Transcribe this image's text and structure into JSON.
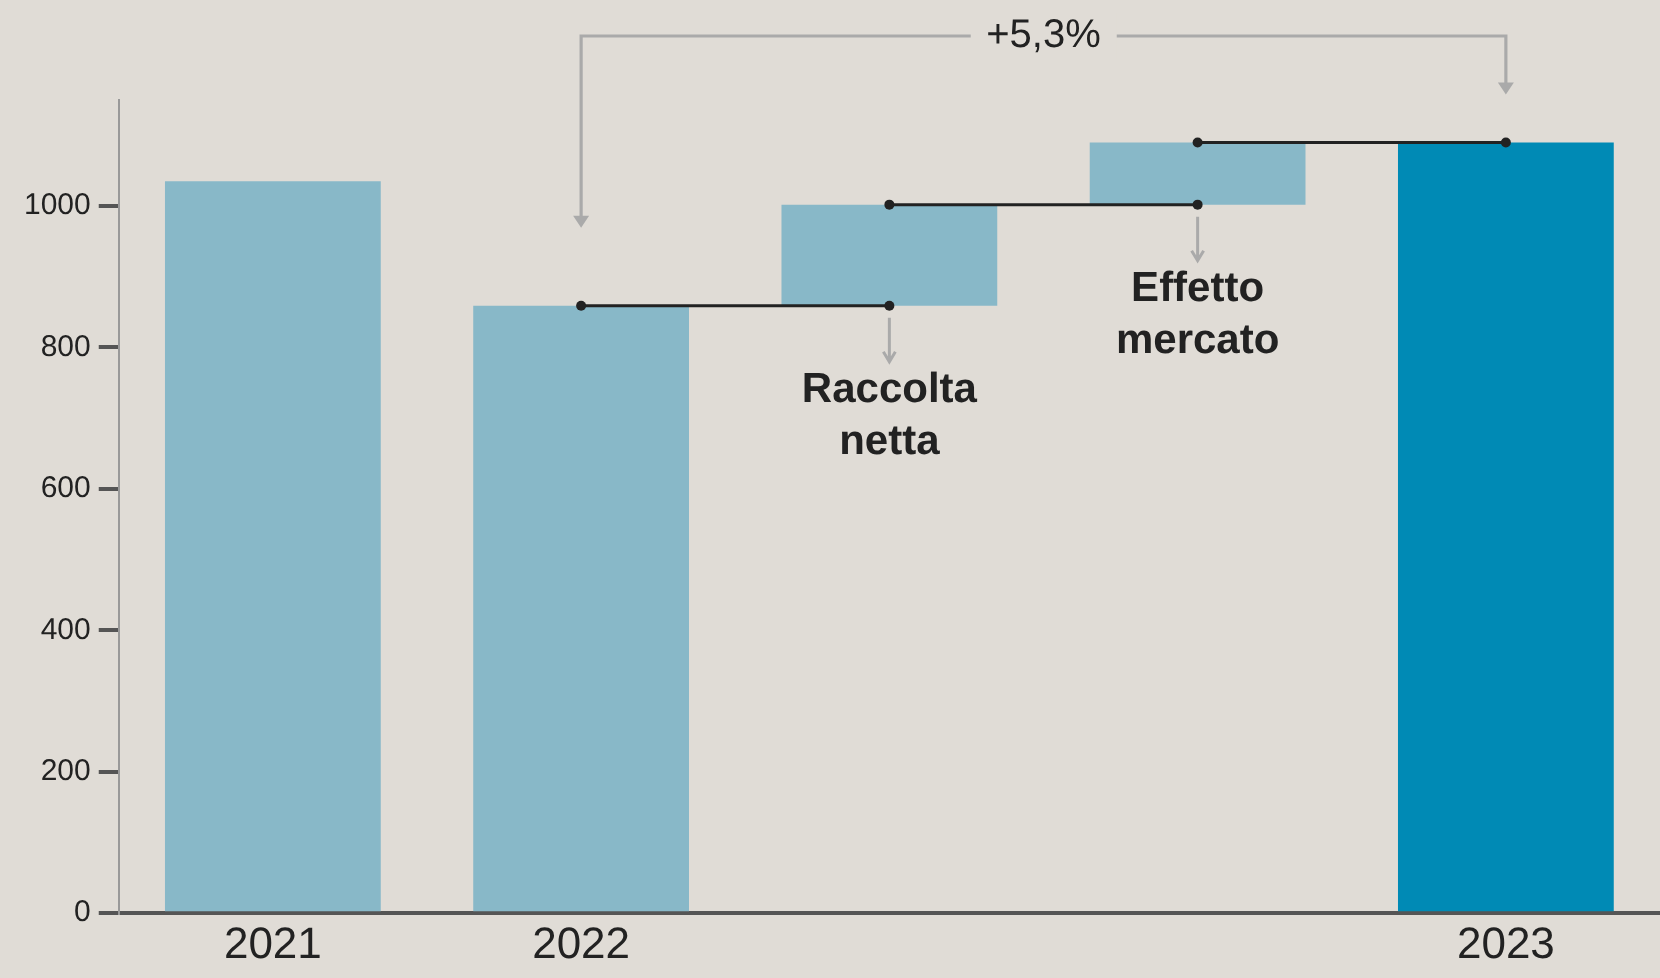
{
  "chart_data": {
    "type": "bar",
    "categories": [
      "2021",
      "2022",
      "Raccolta netta",
      "Effetto mercato",
      "2023"
    ],
    "values": [
      1035,
      859,
      143,
      88,
      1090
    ],
    "base": [
      null,
      null,
      859,
      1002,
      null
    ],
    "colors": [
      "#88b8c8",
      "#88b8c8",
      "#88b8c8",
      "#88b8c8",
      "#008ab5"
    ],
    "ylim": [
      0,
      1150
    ],
    "yticks": [
      0,
      200,
      400,
      600,
      800,
      1000
    ],
    "grid": false,
    "legend": false,
    "annotations": [
      "+5,3%"
    ]
  }
}
